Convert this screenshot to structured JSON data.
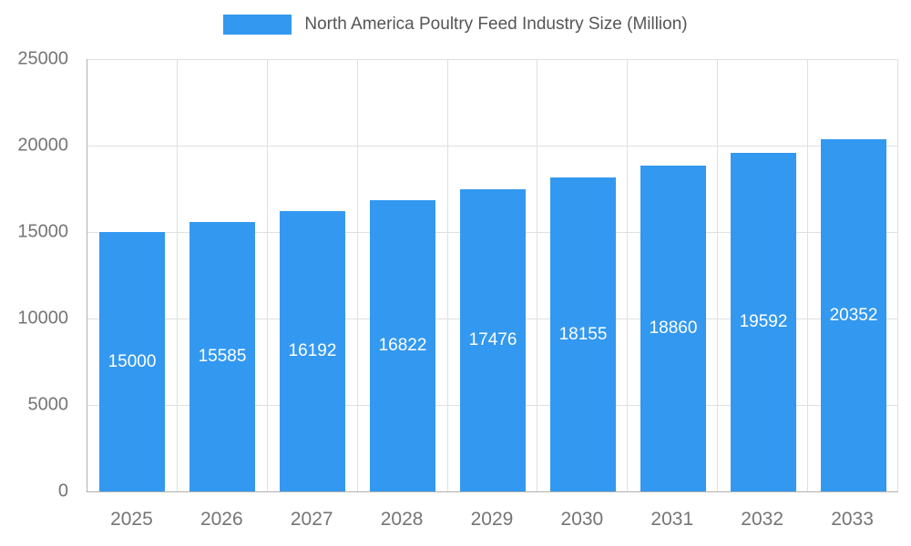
{
  "chart_data": {
    "type": "bar",
    "title": "North America Poultry Feed Industry Size (Million)",
    "categories": [
      "2025",
      "2026",
      "2027",
      "2028",
      "2029",
      "2030",
      "2031",
      "2032",
      "2033"
    ],
    "values": [
      15000,
      15585,
      16192,
      16822,
      17476,
      18155,
      18860,
      19592,
      20352
    ],
    "xlabel": "",
    "ylabel": "",
    "ylim": [
      0,
      25000
    ],
    "ytick_step": 5000,
    "grid": true,
    "legend_position": "top",
    "colors": {
      "bar": "#3398f0",
      "value_label": "#ffffff",
      "axis_text": "#757575",
      "title_text": "#555555",
      "grid_line": "#e0e0e0",
      "axis_line": "#b0b0b0",
      "background": "#ffffff"
    }
  }
}
